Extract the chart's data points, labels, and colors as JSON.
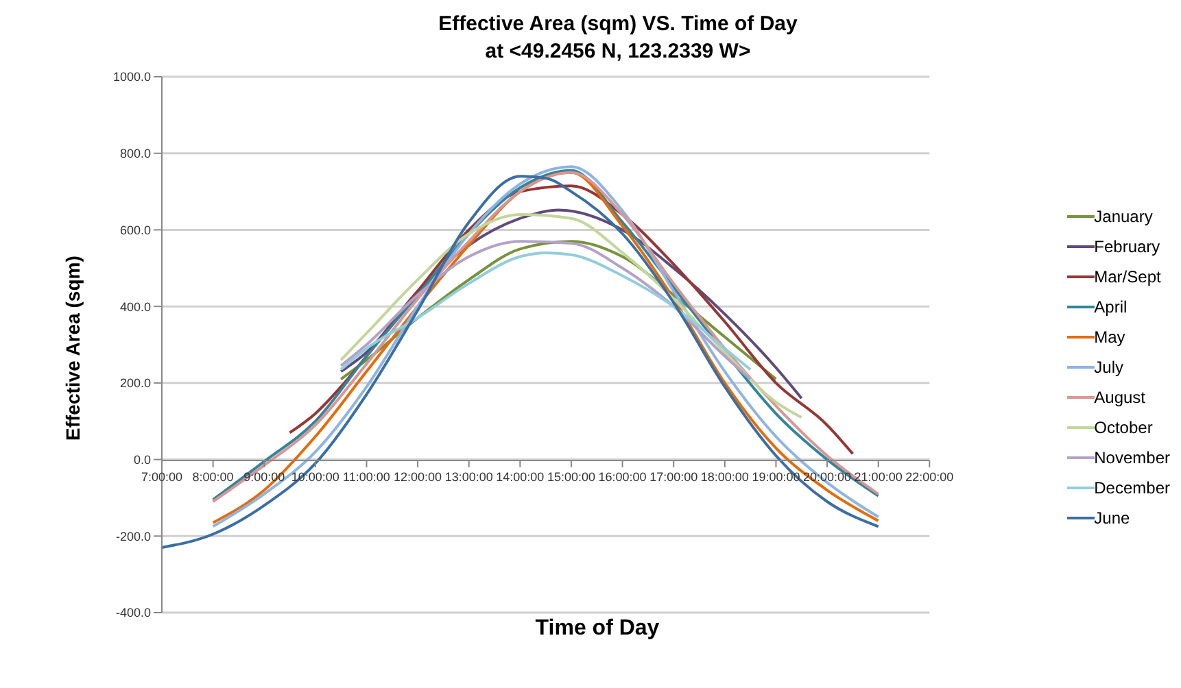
{
  "chart_data": {
    "type": "line",
    "title": "Effective Area (sqm) VS. Time of Day",
    "subtitle": "at <49.2456 N, 123.2339 W>",
    "xlabel": "Time of Day",
    "ylabel": "Effective Area (sqm)",
    "xlim": [
      7,
      22
    ],
    "xticks": [
      {
        "value": 7,
        "label": "7:00:00"
      },
      {
        "value": 8,
        "label": "8:00:00"
      },
      {
        "value": 9,
        "label": "9:00:00"
      },
      {
        "value": 10,
        "label": "10:00:00"
      },
      {
        "value": 11,
        "label": "11:00:00"
      },
      {
        "value": 12,
        "label": "12:00:00"
      },
      {
        "value": 13,
        "label": "13:00:00"
      },
      {
        "value": 14,
        "label": "14:00:00"
      },
      {
        "value": 15,
        "label": "15:00:00"
      },
      {
        "value": 16,
        "label": "16:00:00"
      },
      {
        "value": 17,
        "label": "17:00:00"
      },
      {
        "value": 18,
        "label": "18:00:00"
      },
      {
        "value": 19,
        "label": "19:00:00"
      },
      {
        "value": 20,
        "label": "20:00:00"
      },
      {
        "value": 21,
        "label": "21:00:00"
      },
      {
        "value": 22,
        "label": "22:00:00"
      }
    ],
    "ylim": [
      -400,
      1000
    ],
    "yticks": [
      {
        "value": -400,
        "label": "-400.0"
      },
      {
        "value": -200,
        "label": "-200.0"
      },
      {
        "value": 0,
        "label": "0.0"
      },
      {
        "value": 200,
        "label": "200.0"
      },
      {
        "value": 400,
        "label": "400.0"
      },
      {
        "value": 600,
        "label": "600.0"
      },
      {
        "value": 800,
        "label": "800.0"
      },
      {
        "value": 1000,
        "label": "1000.0"
      }
    ],
    "grid": "y",
    "legend": "right",
    "marker": "none",
    "line_style": "solid",
    "series": [
      {
        "name": "January",
        "color": "#77933c",
        "x": [
          10.5,
          11,
          12,
          13,
          14,
          15,
          16,
          17,
          18,
          19
        ],
        "values": [
          210,
          260,
          370,
          470,
          550,
          570,
          530,
          430,
          320,
          210
        ]
      },
      {
        "name": "February",
        "color": "#604a7b",
        "x": [
          10.5,
          11,
          12,
          13,
          14,
          14.75,
          16,
          17,
          18,
          19,
          19.5
        ],
        "values": [
          230,
          280,
          440,
          560,
          630,
          652,
          600,
          500,
          380,
          240,
          160
        ]
      },
      {
        "name": "Mar/Sept",
        "color": "#953735",
        "x": [
          9.5,
          10,
          10.5,
          11,
          12,
          13,
          14,
          15,
          16,
          17,
          18,
          19,
          20,
          20.5
        ],
        "values": [
          70,
          120,
          190,
          270,
          440,
          600,
          700,
          715,
          640,
          510,
          360,
          200,
          90,
          15
        ]
      },
      {
        "name": "April",
        "color": "#31859c",
        "x": [
          8,
          9,
          10,
          11,
          12,
          13,
          14,
          15,
          16,
          17,
          18,
          19,
          20,
          21
        ],
        "values": [
          -105,
          -5,
          100,
          270,
          430,
          590,
          710,
          755,
          620,
          450,
          280,
          120,
          0,
          -95
        ]
      },
      {
        "name": "May",
        "color": "#e46c0a",
        "x": [
          8,
          9,
          10,
          11,
          12,
          13,
          14,
          15,
          16,
          17,
          18,
          19,
          20,
          21
        ],
        "values": [
          -165,
          -80,
          60,
          230,
          400,
          560,
          700,
          750,
          610,
          420,
          200,
          30,
          -80,
          -160
        ]
      },
      {
        "name": "July",
        "color": "#8eb4e3",
        "x": [
          8,
          9,
          10,
          11,
          12,
          13,
          14,
          15,
          16,
          17,
          18,
          19,
          20,
          21
        ],
        "values": [
          -175,
          -90,
          20,
          190,
          400,
          590,
          720,
          765,
          650,
          440,
          230,
          60,
          -60,
          -150
        ]
      },
      {
        "name": "August",
        "color": "#d99694",
        "x": [
          8,
          9,
          10,
          11,
          12,
          13,
          14,
          15,
          16,
          17,
          18,
          19,
          20,
          21
        ],
        "values": [
          -110,
          -15,
          90,
          250,
          420,
          570,
          700,
          750,
          640,
          460,
          290,
          140,
          10,
          -90
        ]
      },
      {
        "name": "October",
        "color": "#c3d69b",
        "x": [
          10.5,
          11,
          12,
          13,
          14,
          15,
          16,
          17,
          18,
          19,
          19.5
        ],
        "values": [
          260,
          330,
          470,
          590,
          640,
          630,
          540,
          420,
          280,
          150,
          110
        ]
      },
      {
        "name": "November",
        "color": "#b3a2c7",
        "x": [
          10.5,
          11,
          12,
          13,
          14,
          15,
          16,
          17,
          18,
          18.5
        ],
        "values": [
          245,
          300,
          430,
          530,
          570,
          565,
          500,
          400,
          270,
          210
        ]
      },
      {
        "name": "December",
        "color": "#93cddd",
        "x": [
          10.5,
          11,
          12,
          13,
          14,
          14.5,
          15,
          16,
          17,
          18,
          18.5
        ],
        "values": [
          235,
          290,
          370,
          460,
          530,
          540,
          535,
          480,
          400,
          290,
          235
        ]
      },
      {
        "name": "June",
        "color": "#3a6ea5",
        "x": [
          7,
          8,
          9,
          10,
          11,
          12,
          13,
          14,
          14.5,
          15,
          16,
          17,
          18,
          19,
          20,
          21
        ],
        "values": [
          -230,
          -195,
          -120,
          -10,
          170,
          390,
          620,
          740,
          735,
          700,
          590,
          410,
          190,
          10,
          -110,
          -175
        ]
      }
    ]
  }
}
